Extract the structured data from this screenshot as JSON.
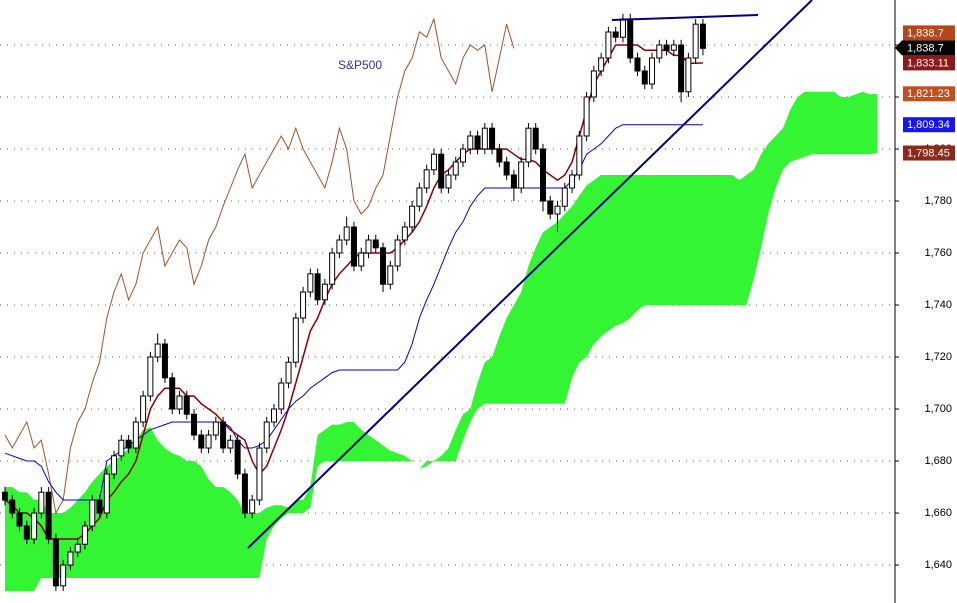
{
  "chart_data": {
    "type": "candlestick",
    "title": "S&P500",
    "ylim": [
      1625.4,
      1857.3
    ],
    "yticks": [
      {
        "value": 1640,
        "label": "1,640"
      },
      {
        "value": 1660,
        "label": "1,660"
      },
      {
        "value": 1680,
        "label": "1,680"
      },
      {
        "value": 1700,
        "label": "1,700"
      },
      {
        "value": 1720,
        "label": "1,720"
      },
      {
        "value": 1740,
        "label": "1,740"
      },
      {
        "value": 1760,
        "label": "1,760"
      },
      {
        "value": 1780,
        "label": "1,780"
      },
      {
        "value": 1800,
        "label": "1,800"
      },
      {
        "value": 1820,
        "label": "1,820"
      },
      {
        "value": 1840,
        "label": "1,840"
      }
    ],
    "grid": true,
    "up_color": "#ffffff",
    "down_color": "#000000",
    "last_label": "1,838.7",
    "open": [
      1668,
      1665,
      1660,
      1655,
      1650,
      1660,
      1668,
      1650,
      1632,
      1640,
      1645,
      1648,
      1655,
      1665,
      1660,
      1675,
      1682,
      1688,
      1685,
      1695,
      1705,
      1720,
      1725,
      1712,
      1700,
      1705,
      1698,
      1690,
      1685,
      1690,
      1695,
      1685,
      1688,
      1675,
      1660,
      1665,
      1685,
      1695,
      1700,
      1710,
      1718,
      1735,
      1745,
      1752,
      1742,
      1748,
      1760,
      1765,
      1770,
      1755,
      1760,
      1765,
      1762,
      1748,
      1755,
      1765,
      1770,
      1778,
      1785,
      1792,
      1798,
      1785,
      1790,
      1795,
      1800,
      1805,
      1800,
      1808,
      1800,
      1795,
      1790,
      1785,
      1795,
      1808,
      1800,
      1780,
      1775,
      1778,
      1785,
      1790,
      1805,
      1820,
      1830,
      1835,
      1845,
      1843,
      1850,
      1835,
      1830,
      1825,
      1835,
      1840,
      1838,
      1840,
      1822,
      1835,
      1848
    ],
    "high": [
      1670,
      1667,
      1662,
      1657,
      1662,
      1670,
      1670,
      1652,
      1642,
      1647,
      1650,
      1657,
      1667,
      1667,
      1677,
      1684,
      1690,
      1690,
      1697,
      1707,
      1722,
      1729,
      1727,
      1714,
      1707,
      1707,
      1700,
      1692,
      1692,
      1697,
      1697,
      1690,
      1690,
      1677,
      1667,
      1687,
      1697,
      1702,
      1712,
      1720,
      1737,
      1747,
      1754,
      1754,
      1750,
      1762,
      1767,
      1774,
      1772,
      1762,
      1767,
      1767,
      1764,
      1757,
      1767,
      1772,
      1780,
      1787,
      1794,
      1800,
      1800,
      1792,
      1797,
      1802,
      1807,
      1807,
      1810,
      1810,
      1802,
      1797,
      1792,
      1797,
      1810,
      1810,
      1802,
      1782,
      1780,
      1787,
      1792,
      1807,
      1822,
      1832,
      1837,
      1847,
      1847,
      1852,
      1852,
      1837,
      1832,
      1837,
      1842,
      1842,
      1842,
      1842,
      1837,
      1850,
      1850
    ],
    "low": [
      1663,
      1658,
      1653,
      1648,
      1648,
      1658,
      1648,
      1630,
      1630,
      1638,
      1643,
      1646,
      1653,
      1658,
      1658,
      1673,
      1680,
      1683,
      1683,
      1693,
      1703,
      1718,
      1710,
      1698,
      1698,
      1696,
      1688,
      1683,
      1683,
      1688,
      1683,
      1683,
      1673,
      1658,
      1658,
      1663,
      1683,
      1693,
      1698,
      1708,
      1716,
      1733,
      1743,
      1740,
      1740,
      1746,
      1758,
      1763,
      1753,
      1753,
      1758,
      1760,
      1745,
      1746,
      1753,
      1763,
      1768,
      1776,
      1783,
      1790,
      1783,
      1783,
      1788,
      1793,
      1798,
      1798,
      1798,
      1798,
      1793,
      1788,
      1780,
      1783,
      1793,
      1798,
      1776,
      1773,
      1768,
      1776,
      1783,
      1788,
      1803,
      1818,
      1828,
      1833,
      1841,
      1841,
      1833,
      1828,
      1823,
      1823,
      1833,
      1836,
      1836,
      1818,
      1820,
      1833,
      1836
    ],
    "close": [
      1665,
      1660,
      1655,
      1650,
      1660,
      1668,
      1650,
      1632,
      1640,
      1645,
      1648,
      1655,
      1665,
      1660,
      1675,
      1682,
      1688,
      1685,
      1695,
      1705,
      1720,
      1725,
      1712,
      1700,
      1705,
      1698,
      1690,
      1685,
      1690,
      1695,
      1685,
      1688,
      1675,
      1660,
      1665,
      1685,
      1695,
      1700,
      1710,
      1718,
      1735,
      1745,
      1752,
      1742,
      1748,
      1760,
      1765,
      1770,
      1755,
      1760,
      1765,
      1762,
      1748,
      1755,
      1765,
      1770,
      1778,
      1785,
      1792,
      1798,
      1785,
      1790,
      1795,
      1800,
      1805,
      1800,
      1808,
      1800,
      1795,
      1790,
      1785,
      1795,
      1808,
      1800,
      1780,
      1775,
      1778,
      1785,
      1790,
      1805,
      1820,
      1830,
      1835,
      1845,
      1843,
      1850,
      1835,
      1830,
      1825,
      1835,
      1840,
      1838,
      1840,
      1822,
      1835,
      1848,
      1838.7
    ],
    "series": [
      {
        "color": "#a0522d",
        "box_color": "#b5451b",
        "last_label": "1,838.7",
        "values": [
          1690,
          1685,
          1690,
          1695,
          1685,
          1688,
          1675,
          1660,
          1665,
          1685,
          1695,
          1700,
          1710,
          1718,
          1735,
          1745,
          1752,
          1742,
          1748,
          1760,
          1765,
          1770,
          1755,
          1760,
          1765,
          1762,
          1748,
          1755,
          1765,
          1770,
          1778,
          1785,
          1792,
          1798,
          1785,
          1790,
          1795,
          1800,
          1805,
          1800,
          1808,
          1800,
          1795,
          1790,
          1785,
          1795,
          1808,
          1800,
          1780,
          1775,
          1778,
          1785,
          1790,
          1805,
          1820,
          1830,
          1835,
          1845,
          1843,
          1850,
          1835,
          1830,
          1825,
          1835,
          1840,
          1838,
          1840,
          1822,
          1835,
          1848,
          1838.7,
          null,
          null,
          null,
          null,
          null,
          null,
          null,
          null,
          null,
          null,
          null,
          null,
          null,
          null,
          null,
          null,
          null,
          null,
          null,
          null,
          null,
          null,
          null,
          null,
          null,
          null,
          null,
          null,
          null,
          null,
          null,
          null,
          null,
          null,
          null,
          null,
          null,
          null,
          null,
          null,
          null,
          null,
          null,
          null,
          null,
          null,
          null,
          null,
          null,
          null
        ]
      },
      {
        "color": "#0000cc",
        "box_color": "#1515f0",
        "last_label": "1,809.34",
        "values": [
          1683,
          1682,
          1681,
          1680,
          1680,
          1678,
          1672,
          1668,
          1665,
          1665,
          1665,
          1665,
          1665,
          1665,
          1680,
          1682,
          1684,
          1686,
          1688,
          1690,
          1692,
          1693,
          1694,
          1695,
          1695,
          1695,
          1695,
          1695,
          1695,
          1695,
          1695,
          1693,
          1688,
          1685,
          1685,
          1686,
          1688,
          1692,
          1696,
          1700,
          1703,
          1705,
          1708,
          1710,
          1712,
          1714,
          1715,
          1715,
          1715,
          1715,
          1715,
          1715,
          1715,
          1715,
          1715,
          1718,
          1725,
          1735,
          1742,
          1748,
          1755,
          1762,
          1768,
          1772,
          1778,
          1782,
          1785,
          1785,
          1785,
          1785,
          1785,
          1785,
          1785,
          1785,
          1785,
          1785,
          1785,
          1785,
          1788,
          1792,
          1798,
          1800,
          1802,
          1805,
          1808,
          1809.34,
          1809.34,
          1809.34,
          1809.34,
          1809.34,
          1809.34,
          1809.34,
          1809.34,
          1809.34,
          1809.34,
          1809.34,
          1809.34,
          null,
          null,
          null,
          null,
          null,
          null,
          null,
          null,
          null,
          null,
          null,
          null,
          null,
          null,
          null,
          null,
          null,
          null,
          null,
          null,
          null,
          null,
          null,
          null
        ]
      },
      {
        "color": "#8b0000",
        "box_color": "#8b1a1a",
        "last_label": "1,833.11",
        "values": [
          1665,
          1663,
          1660,
          1660,
          1658,
          1655,
          1650,
          1650,
          1650,
          1650,
          1650,
          1652,
          1655,
          1658,
          1665,
          1668,
          1672,
          1675,
          1680,
          1690,
          1700,
          1705,
          1708,
          1708,
          1708,
          1705,
          1705,
          1702,
          1700,
          1698,
          1695,
          1692,
          1690,
          1688,
          1680,
          1675,
          1678,
          1685,
          1692,
          1700,
          1710,
          1720,
          1730,
          1735,
          1742,
          1748,
          1752,
          1755,
          1758,
          1760,
          1760,
          1760,
          1760,
          1760,
          1762,
          1765,
          1768,
          1772,
          1778,
          1785,
          1790,
          1792,
          1795,
          1798,
          1800,
          1800,
          1800,
          1800,
          1800,
          1800,
          1798,
          1796,
          1796,
          1795,
          1792,
          1790,
          1788,
          1790,
          1795,
          1805,
          1815,
          1825,
          1830,
          1835,
          1840,
          1840,
          1840,
          1840,
          1838,
          1838,
          1838,
          1838,
          1836,
          1836,
          1833,
          1833,
          1833.11,
          null,
          null,
          null,
          null,
          null,
          null,
          null,
          null,
          null,
          null,
          null,
          null,
          null,
          null,
          null,
          null,
          null,
          null,
          null,
          null,
          null,
          null,
          null,
          null
        ]
      }
    ],
    "cloud": {
      "color": "#33f533",
      "series": [
        {
          "box_color": "#c0501f",
          "last_label": "1,821.23",
          "values": [
            1630,
            1630,
            1630,
            1630,
            1630,
            1635,
            1635,
            1635,
            1635,
            1635,
            1635,
            1635,
            1635,
            1635,
            1635,
            1635,
            1635,
            1635,
            1635,
            1635,
            1635,
            1635,
            1635,
            1635,
            1635,
            1635,
            1635,
            1635,
            1635,
            1635,
            1635,
            1635,
            1635,
            1635,
            1635,
            1635,
            1650,
            1655,
            1658,
            1660,
            1660,
            1660,
            1662,
            1678,
            1680,
            1680,
            1680,
            1680,
            1680,
            1680,
            1680,
            1680,
            1680,
            1680,
            1680,
            1680,
            1680,
            1677,
            1680,
            1680,
            1682,
            1685,
            1692,
            1698,
            1700,
            1710,
            1718,
            1720,
            1728,
            1735,
            1740,
            1745,
            1755,
            1762,
            1768,
            1770,
            1772,
            1775,
            1778,
            1782,
            1786,
            1788,
            1790,
            1790,
            1790,
            1790,
            1790,
            1790,
            1790,
            1790,
            1790,
            1790,
            1790,
            1790,
            1790,
            1790,
            1790,
            1790,
            1790,
            1790,
            1790,
            1788,
            1790,
            1792,
            1798,
            1802,
            1805,
            1808,
            1815,
            1820,
            1822,
            1822,
            1822,
            1822,
            1822,
            1820,
            1820,
            1821,
            1822,
            1821,
            1821.23
          ]
        },
        {
          "box_color": "#8b2a1a",
          "last_label": "1,798.45",
          "values": [
            1670,
            1670,
            1668,
            1668,
            1665,
            1665,
            1660,
            1660,
            1660,
            1662,
            1665,
            1668,
            1672,
            1675,
            1678,
            1680,
            1682,
            1685,
            1688,
            1692,
            1693,
            1688,
            1685,
            1683,
            1682,
            1680,
            1680,
            1678,
            1673,
            1670,
            1670,
            1668,
            1665,
            1660,
            1660,
            1660,
            1662,
            1663,
            1663,
            1662,
            1665,
            1665,
            1670,
            1690,
            1692,
            1694,
            1694,
            1695,
            1695,
            1692,
            1690,
            1688,
            1686,
            1684,
            1683,
            1682,
            1680,
            1677,
            1678,
            1680,
            1680,
            1680,
            1680,
            1688,
            1695,
            1700,
            1702,
            1702,
            1702,
            1702,
            1702,
            1702,
            1702,
            1702,
            1702,
            1702,
            1702,
            1702,
            1712,
            1718,
            1720,
            1725,
            1728,
            1730,
            1732,
            1733,
            1735,
            1738,
            1740,
            1740,
            1740,
            1740,
            1740,
            1740,
            1740,
            1740,
            1740,
            1740,
            1740,
            1740,
            1740,
            1740,
            1740,
            1750,
            1762,
            1775,
            1785,
            1792,
            1795,
            1796,
            1797,
            1798,
            1798,
            1798,
            1798,
            1798,
            1798,
            1798,
            1798,
            1798,
            1798.45
          ]
        }
      ]
    }
  }
}
